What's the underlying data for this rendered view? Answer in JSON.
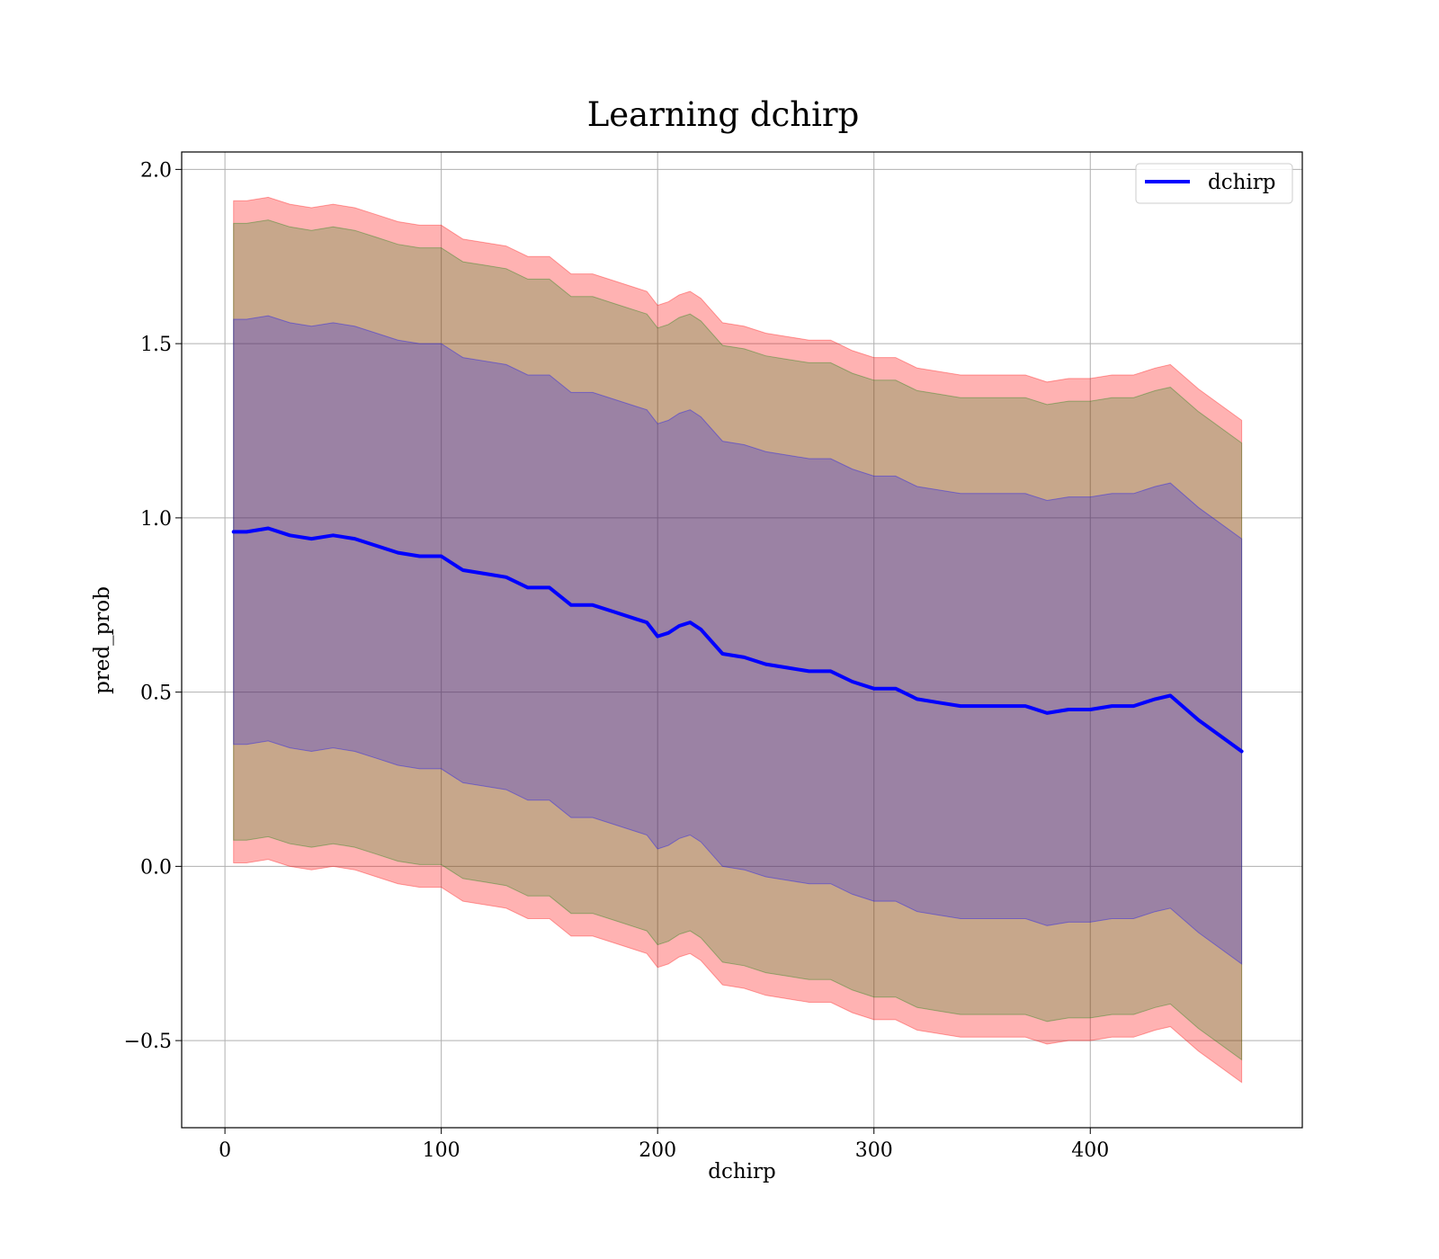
{
  "chart_data": {
    "type": "line",
    "title": "Learning dchirp",
    "xlabel": "dchirp",
    "ylabel": "pred_prob",
    "xlim": [
      -20,
      498
    ],
    "ylim": [
      -0.75,
      2.05
    ],
    "xticks": [
      0,
      100,
      200,
      300,
      400
    ],
    "xtick_labels": [
      "0",
      "100",
      "200",
      "300",
      "400"
    ],
    "yticks": [
      -0.5,
      0.0,
      0.5,
      1.0,
      1.5,
      2.0
    ],
    "ytick_labels": [
      "−0.5",
      "0.0",
      "0.5",
      "1.0",
      "1.5",
      "2.0"
    ],
    "grid": true,
    "legend": {
      "placement": "top-right",
      "entries": [
        "dchirp"
      ]
    },
    "x": [
      4,
      10,
      20,
      30,
      40,
      50,
      60,
      70,
      80,
      90,
      100,
      110,
      120,
      130,
      140,
      150,
      160,
      170,
      180,
      190,
      195,
      200,
      205,
      210,
      215,
      220,
      230,
      240,
      250,
      260,
      270,
      280,
      290,
      300,
      310,
      320,
      330,
      340,
      350,
      360,
      370,
      380,
      390,
      400,
      410,
      420,
      430,
      437,
      450,
      470
    ],
    "series": [
      {
        "name": "dchirp",
        "color": "#0000ff",
        "values": [
          0.96,
          0.96,
          0.97,
          0.95,
          0.94,
          0.95,
          0.94,
          0.92,
          0.9,
          0.89,
          0.89,
          0.85,
          0.84,
          0.83,
          0.8,
          0.8,
          0.75,
          0.75,
          0.73,
          0.71,
          0.7,
          0.66,
          0.67,
          0.69,
          0.7,
          0.68,
          0.61,
          0.6,
          0.58,
          0.57,
          0.56,
          0.56,
          0.53,
          0.51,
          0.51,
          0.48,
          0.47,
          0.46,
          0.46,
          0.46,
          0.46,
          0.44,
          0.45,
          0.45,
          0.46,
          0.46,
          0.48,
          0.49,
          0.42,
          0.33
        ]
      }
    ],
    "bands": [
      {
        "color": "#ff0000",
        "opacity": 0.3,
        "half_width": 0.95
      },
      {
        "color": "#008000",
        "opacity": 0.22,
        "half_width": 0.885
      },
      {
        "color": "#0000ff",
        "opacity": 0.22,
        "half_width": 0.61
      }
    ]
  }
}
